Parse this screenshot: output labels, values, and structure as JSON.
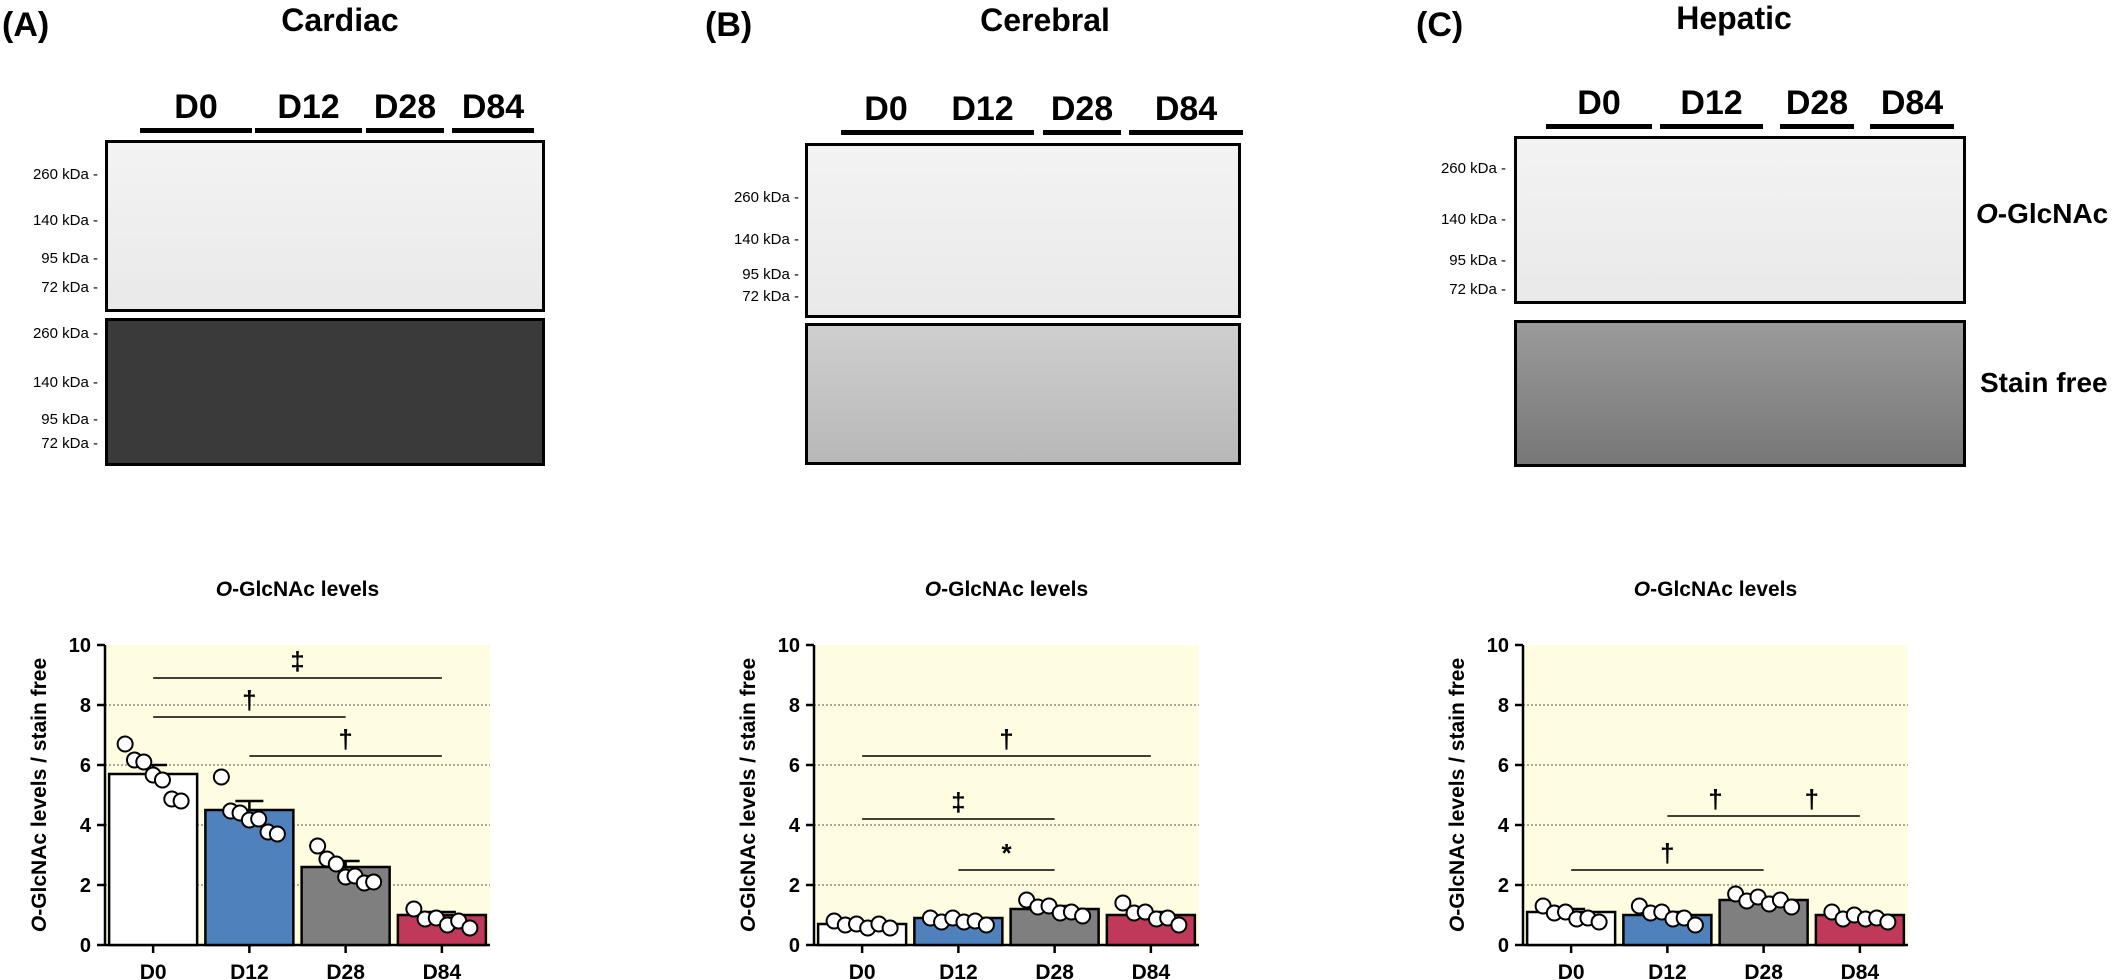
{
  "blots": [
    {
      "label": "(A)",
      "title": "Cardiac",
      "timepoints": [
        "D0",
        "D12",
        "D28",
        "D84"
      ],
      "top_markers": [
        "260 kDa -",
        "140 kDa -",
        "95 kDa -",
        "72 kDa -"
      ],
      "bottom_markers": [
        "260 kDa -",
        "140 kDa -",
        "95 kDa -",
        "72 kDa -"
      ]
    },
    {
      "label": "(B)",
      "title": "Cerebral",
      "timepoints": [
        "D0",
        "D12",
        "D28",
        "D84"
      ],
      "top_markers": [
        "260 kDa -",
        "140 kDa -",
        "95 kDa -",
        "72 kDa -"
      ]
    },
    {
      "label": "(C)",
      "title": "Hepatic",
      "timepoints": [
        "D0",
        "D12",
        "D28",
        "D84"
      ],
      "top_markers": [
        "260 kDa -",
        "140 kDa -",
        "95 kDa -",
        "72 kDa -"
      ],
      "side_labels": {
        "top_italic": "O",
        "top_rest": "-GlcNAc",
        "bottom": "Stain free"
      }
    }
  ],
  "chart_data": [
    {
      "type": "bar",
      "title_italic": "O",
      "title_rest": "-GlcNAc levels",
      "ylabel_italic": "O",
      "ylabel_rest": "-GlcNAc levels / stain free",
      "categories": [
        "D0",
        "D12",
        "D28",
        "D84"
      ],
      "values": [
        5.7,
        4.5,
        2.6,
        1.0
      ],
      "errors": [
        0.3,
        0.3,
        0.2,
        0.1
      ],
      "points": [
        [
          6.7,
          6.3,
          6.1,
          5.8,
          5.5,
          5.0,
          4.8
        ],
        [
          5.6,
          4.6,
          4.4,
          4.3,
          4.2,
          3.9,
          3.7
        ],
        [
          3.3,
          3.0,
          2.7,
          2.4,
          2.3,
          2.2,
          2.1
        ],
        [
          1.2,
          1.0,
          0.9,
          0.8,
          0.8,
          0.7
        ]
      ],
      "colors": [
        "#ffffff",
        "#4f81bd",
        "#7f7f7f",
        "#c0395a"
      ],
      "ylim": [
        0,
        10
      ],
      "yticks": [
        0,
        2,
        4,
        6,
        8,
        10
      ],
      "grid_y": [
        2,
        4,
        6,
        8
      ],
      "background": "#fffde1",
      "brackets": [
        {
          "from": 0,
          "to": 3,
          "y": 8.9,
          "label": "‡"
        },
        {
          "from": 0,
          "to": 2,
          "y": 7.6,
          "label": "†"
        },
        {
          "from": 1,
          "to": 3,
          "y": 6.3,
          "label": "†"
        }
      ]
    },
    {
      "type": "bar",
      "title_italic": "O",
      "title_rest": "-GlcNAc levels",
      "ylabel_italic": "O",
      "ylabel_rest": "-GlcNAc levels / stain free",
      "categories": [
        "D0",
        "D12",
        "D28",
        "D84"
      ],
      "values": [
        0.7,
        0.9,
        1.2,
        1.0
      ],
      "errors": [
        0.05,
        0.05,
        0.1,
        0.1
      ],
      "points": [
        [
          0.8,
          0.8,
          0.7,
          0.7,
          0.7,
          0.7
        ],
        [
          0.9,
          0.9,
          0.9,
          0.9,
          0.8,
          0.8
        ],
        [
          1.5,
          1.4,
          1.3,
          1.2,
          1.1,
          1.1
        ],
        [
          1.4,
          1.2,
          1.1,
          1.0,
          0.9,
          0.8
        ]
      ],
      "colors": [
        "#ffffff",
        "#4f81bd",
        "#7f7f7f",
        "#c0395a"
      ],
      "ylim": [
        0,
        10
      ],
      "yticks": [
        0,
        2,
        4,
        6,
        8,
        10
      ],
      "grid_y": [
        2,
        4,
        6,
        8
      ],
      "background": "#fffde1",
      "brackets": [
        {
          "from": 0,
          "to": 3,
          "y": 6.3,
          "label": "†"
        },
        {
          "from": 0,
          "to": 2,
          "y": 4.2,
          "label": "‡"
        },
        {
          "from": 1,
          "to": 2,
          "y": 2.5,
          "label": "*"
        }
      ]
    },
    {
      "type": "bar",
      "title_italic": "O",
      "title_rest": "-GlcNAc levels",
      "ylabel_italic": "O",
      "ylabel_rest": "-GlcNAc levels / stain free",
      "categories": [
        "D0",
        "D12",
        "D28",
        "D84"
      ],
      "values": [
        1.1,
        1.0,
        1.5,
        1.0
      ],
      "errors": [
        0.1,
        0.1,
        0.1,
        0.05
      ],
      "points": [
        [
          1.3,
          1.2,
          1.1,
          1.0,
          0.9,
          0.9
        ],
        [
          1.3,
          1.2,
          1.1,
          1.0,
          0.9,
          0.8
        ],
        [
          1.7,
          1.6,
          1.6,
          1.5,
          1.5,
          1.4
        ],
        [
          1.1,
          1.0,
          1.0,
          1.0,
          0.9,
          0.9
        ]
      ],
      "colors": [
        "#ffffff",
        "#4f81bd",
        "#7f7f7f",
        "#c0395a"
      ],
      "ylim": [
        0,
        10
      ],
      "yticks": [
        0,
        2,
        4,
        6,
        8,
        10
      ],
      "grid_y": [
        2,
        4,
        6,
        8
      ],
      "background": "#fffde1",
      "brackets": [
        {
          "from": 0,
          "to": 2,
          "y": 2.5,
          "label": "†"
        },
        {
          "from": 1,
          "to": 2,
          "y": 4.3,
          "label": "†"
        },
        {
          "from": 2,
          "to": 3,
          "y": 4.3,
          "label": "†"
        }
      ]
    }
  ]
}
